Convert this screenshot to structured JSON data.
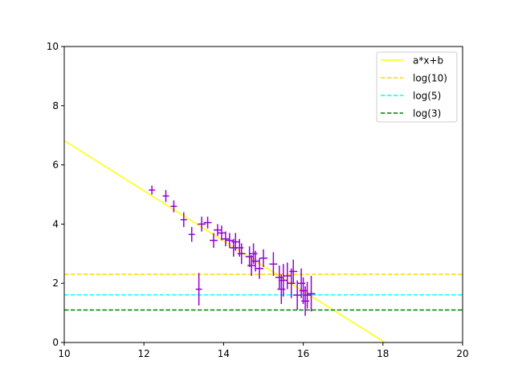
{
  "chart_data": {
    "type": "scatter",
    "title": "",
    "xlabel": "",
    "ylabel": "",
    "xlim": [
      10,
      20
    ],
    "ylim": [
      0,
      10
    ],
    "x_ticks": [
      "10",
      "12",
      "14",
      "16",
      "18",
      "20"
    ],
    "y_ticks": [
      "0",
      "2",
      "4",
      "6",
      "8",
      "10"
    ],
    "grid": false,
    "legend_position": "top-right",
    "points": {
      "color": "#9400d3",
      "data": [
        {
          "x": 12.2,
          "y": 5.15,
          "xerr": 0.08,
          "yerr": 0.15
        },
        {
          "x": 12.55,
          "y": 4.95,
          "xerr": 0.08,
          "yerr": 0.2
        },
        {
          "x": 12.75,
          "y": 4.6,
          "xerr": 0.08,
          "yerr": 0.2
        },
        {
          "x": 13.0,
          "y": 4.15,
          "xerr": 0.08,
          "yerr": 0.25
        },
        {
          "x": 13.2,
          "y": 3.65,
          "xerr": 0.08,
          "yerr": 0.25
        },
        {
          "x": 13.38,
          "y": 1.8,
          "xerr": 0.08,
          "yerr": 0.55
        },
        {
          "x": 13.45,
          "y": 4.0,
          "xerr": 0.1,
          "yerr": 0.25
        },
        {
          "x": 13.6,
          "y": 4.05,
          "xerr": 0.1,
          "yerr": 0.2
        },
        {
          "x": 13.75,
          "y": 3.45,
          "xerr": 0.1,
          "yerr": 0.25
        },
        {
          "x": 13.85,
          "y": 3.8,
          "xerr": 0.1,
          "yerr": 0.2
        },
        {
          "x": 13.95,
          "y": 3.7,
          "xerr": 0.1,
          "yerr": 0.25
        },
        {
          "x": 14.05,
          "y": 3.5,
          "xerr": 0.1,
          "yerr": 0.25
        },
        {
          "x": 14.15,
          "y": 3.45,
          "xerr": 0.1,
          "yerr": 0.25
        },
        {
          "x": 14.25,
          "y": 3.2,
          "xerr": 0.1,
          "yerr": 0.3
        },
        {
          "x": 14.3,
          "y": 3.4,
          "xerr": 0.1,
          "yerr": 0.3
        },
        {
          "x": 14.4,
          "y": 3.2,
          "xerr": 0.1,
          "yerr": 0.3
        },
        {
          "x": 14.45,
          "y": 3.0,
          "xerr": 0.1,
          "yerr": 0.35
        },
        {
          "x": 14.65,
          "y": 2.9,
          "xerr": 0.1,
          "yerr": 0.35
        },
        {
          "x": 14.7,
          "y": 2.6,
          "xerr": 0.1,
          "yerr": 0.35
        },
        {
          "x": 14.75,
          "y": 3.0,
          "xerr": 0.1,
          "yerr": 0.35
        },
        {
          "x": 14.8,
          "y": 2.75,
          "xerr": 0.1,
          "yerr": 0.35
        },
        {
          "x": 14.9,
          "y": 2.5,
          "xerr": 0.1,
          "yerr": 0.35
        },
        {
          "x": 15.0,
          "y": 2.85,
          "xerr": 0.1,
          "yerr": 0.3
        },
        {
          "x": 15.25,
          "y": 2.65,
          "xerr": 0.1,
          "yerr": 0.4
        },
        {
          "x": 15.4,
          "y": 2.2,
          "xerr": 0.1,
          "yerr": 0.4
        },
        {
          "x": 15.45,
          "y": 1.8,
          "xerr": 0.1,
          "yerr": 0.5
        },
        {
          "x": 15.5,
          "y": 2.1,
          "xerr": 0.1,
          "yerr": 0.55
        },
        {
          "x": 15.6,
          "y": 2.25,
          "xerr": 0.1,
          "yerr": 0.45
        },
        {
          "x": 15.7,
          "y": 2.0,
          "xerr": 0.1,
          "yerr": 0.5
        },
        {
          "x": 15.75,
          "y": 2.4,
          "xerr": 0.1,
          "yerr": 0.4
        },
        {
          "x": 15.85,
          "y": 1.6,
          "xerr": 0.1,
          "yerr": 0.5
        },
        {
          "x": 15.95,
          "y": 2.0,
          "xerr": 0.1,
          "yerr": 0.5
        },
        {
          "x": 16.0,
          "y": 1.75,
          "xerr": 0.1,
          "yerr": 0.45
        },
        {
          "x": 16.05,
          "y": 1.4,
          "xerr": 0.1,
          "yerr": 0.5
        },
        {
          "x": 16.1,
          "y": 1.6,
          "xerr": 0.1,
          "yerr": 0.45
        },
        {
          "x": 16.2,
          "y": 1.65,
          "xerr": 0.1,
          "yerr": 0.6
        }
      ]
    },
    "series": [
      {
        "name": "a*x+b",
        "type": "line",
        "color": "#ffff00",
        "style": "solid",
        "x": [
          10,
          18.05
        ],
        "y": [
          6.82,
          0
        ]
      },
      {
        "name": "log(10)",
        "type": "hline",
        "color": "#ffd700",
        "style": "dashed",
        "y": 2.302585
      },
      {
        "name": "log(5)",
        "type": "hline",
        "color": "#00ffff",
        "style": "dashed",
        "y": 1.609438
      },
      {
        "name": "log(3)",
        "type": "hline",
        "color": "#008000",
        "style": "dashed",
        "y": 1.098612
      }
    ]
  }
}
